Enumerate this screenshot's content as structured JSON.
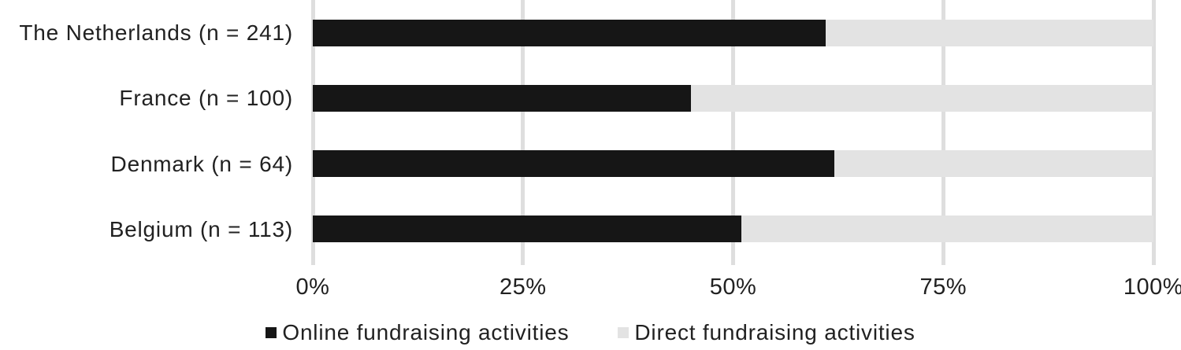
{
  "chart_data": {
    "type": "bar",
    "orientation": "horizontal",
    "stacked": true,
    "title": "",
    "categories": [
      "The Netherlands (n = 241)",
      "France (n = 100)",
      "Denmark (n = 64)",
      "Belgium (n = 113)"
    ],
    "series": [
      {
        "name": "Online fundraising activities",
        "color": "#161616",
        "values": [
          61,
          45,
          62,
          51
        ]
      },
      {
        "name": "Direct fundraising activities",
        "color": "#e3e3e3",
        "values": [
          39,
          55,
          38,
          49
        ]
      }
    ],
    "x_axis": {
      "min": 0,
      "max": 100,
      "tick_labels": [
        "0%",
        "25%",
        "50%",
        "75%",
        "100%"
      ],
      "tick_values": [
        0,
        25,
        50,
        75,
        100
      ],
      "unit": "percent"
    },
    "gridlines": true,
    "gridline_color": "#dedede",
    "legend_position": "bottom",
    "text_color": "#212121",
    "background": "#ffffff"
  }
}
